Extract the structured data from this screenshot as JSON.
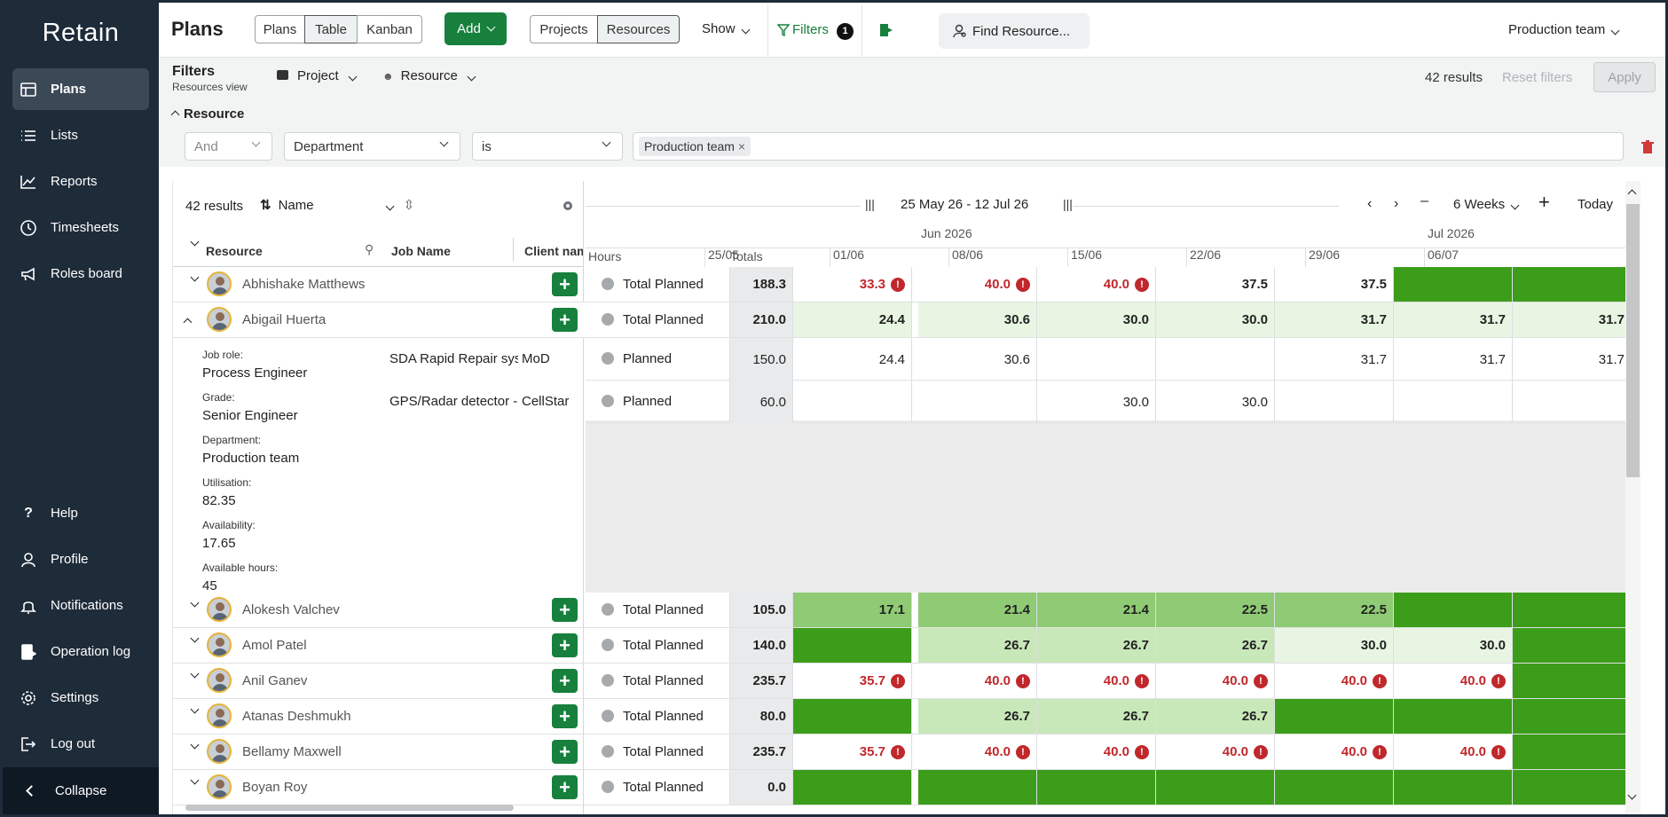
{
  "app": {
    "logo": "Retain",
    "collapse": "Collapse"
  },
  "sidebar": {
    "top": [
      {
        "label": "Plans",
        "icon": "plans-icon",
        "active": true
      },
      {
        "label": "Lists",
        "icon": "list-icon"
      },
      {
        "label": "Reports",
        "icon": "chart-icon"
      },
      {
        "label": "Timesheets",
        "icon": "clock-icon"
      },
      {
        "label": "Roles board",
        "icon": "megaphone-icon"
      }
    ],
    "bottom": [
      {
        "label": "Help",
        "icon": "question-icon"
      },
      {
        "label": "Profile",
        "icon": "user-icon"
      },
      {
        "label": "Notifications",
        "icon": "bell-icon"
      },
      {
        "label": "Operation log",
        "icon": "log-icon"
      },
      {
        "label": "Settings",
        "icon": "gear-icon"
      },
      {
        "label": "Log out",
        "icon": "logout-icon"
      }
    ]
  },
  "topbar": {
    "title": "Plans",
    "views": [
      "Plans",
      "Table",
      "Kanban"
    ],
    "add": "Add",
    "modes": [
      "Projects",
      "Resources"
    ],
    "show": "Show",
    "filters": "Filters",
    "filters_count": "1",
    "find": "Find Resource...",
    "team": "Production team"
  },
  "filters": {
    "title": "Filters",
    "subtitle": "Resources view",
    "project": "Project",
    "resource": "Resource",
    "results": "42 results",
    "reset": "Reset filters",
    "apply": "Apply",
    "section": "Resource",
    "conj": "And",
    "field": "Department",
    "op": "is",
    "chip": "Production team"
  },
  "table": {
    "results": "42 results",
    "sort": "Name",
    "col_resource": "Resource",
    "col_job": "Job Name",
    "col_client": "Client nam",
    "col_hours": "Hours",
    "col_totals": "Totals",
    "range": "25 May 26  -  12 Jul 26",
    "period": "6 Weeks",
    "today": "Today",
    "months": [
      "Jun 2026",
      "Jul 2026"
    ],
    "weeks": [
      "25/05",
      "01/06",
      "08/06",
      "15/06",
      "22/06",
      "29/06",
      "06/07"
    ]
  },
  "detail": {
    "labels": [
      "Job role:",
      "Grade:",
      "Department:",
      "Utilisation:",
      "Availability:",
      "Available hours:"
    ],
    "values": [
      "Process Engineer",
      "Senior Engineer",
      "Production team",
      "82.35",
      "17.65",
      "45"
    ],
    "jobs": [
      {
        "job": "SDA Rapid Repair sys",
        "client": "MoD",
        "label": "Planned",
        "total": "150.0",
        "cells": [
          "24.4",
          "30.6",
          "",
          "",
          "31.7",
          "31.7",
          "31.7"
        ]
      },
      {
        "job": "GPS/Radar detector -",
        "client": "CellStar",
        "label": "Planned",
        "total": "60.0",
        "cells": [
          "",
          "",
          "30.0",
          "30.0",
          "",
          "",
          ""
        ]
      }
    ]
  },
  "rows": [
    {
      "name": "Abhishake Matthews",
      "label": "Total Planned",
      "total": "188.3",
      "cells": [
        "33.3",
        "40.0",
        "40.0",
        "37.5",
        "37.5",
        "",
        ""
      ]
    },
    {
      "name": "Abigail Huerta",
      "label": "Total Planned",
      "total": "210.0",
      "cells": [
        "24.4",
        "30.6",
        "30.0",
        "30.0",
        "31.7",
        "31.7",
        "31.7"
      ]
    },
    {
      "name": "Alokesh Valchev",
      "label": "Total Planned",
      "total": "105.0",
      "cells": [
        "17.1",
        "21.4",
        "21.4",
        "22.5",
        "22.5",
        "",
        ""
      ]
    },
    {
      "name": "Amol Patel",
      "label": "Total Planned",
      "total": "140.0",
      "cells": [
        "",
        "26.7",
        "26.7",
        "26.7",
        "30.0",
        "30.0",
        ""
      ]
    },
    {
      "name": "Anil Ganev",
      "label": "Total Planned",
      "total": "235.7",
      "cells": [
        "35.7",
        "40.0",
        "40.0",
        "40.0",
        "40.0",
        "40.0",
        ""
      ]
    },
    {
      "name": "Atanas Deshmukh",
      "label": "Total Planned",
      "total": "80.0",
      "cells": [
        "",
        "26.7",
        "26.7",
        "26.7",
        "",
        "",
        ""
      ]
    },
    {
      "name": "Bellamy Maxwell",
      "label": "Total Planned",
      "total": "235.7",
      "cells": [
        "35.7",
        "40.0",
        "40.0",
        "40.0",
        "40.0",
        "40.0",
        ""
      ]
    },
    {
      "name": "Boyan Roy",
      "label": "Total Planned",
      "total": "0.0",
      "cells": [
        "",
        "",
        "",
        "",
        "",
        "",
        ""
      ]
    }
  ],
  "colors": {
    "sidebar": "#1e2b39",
    "accent": "#17803d",
    "over": "#c0282c",
    "free": "#3c9d1a"
  }
}
